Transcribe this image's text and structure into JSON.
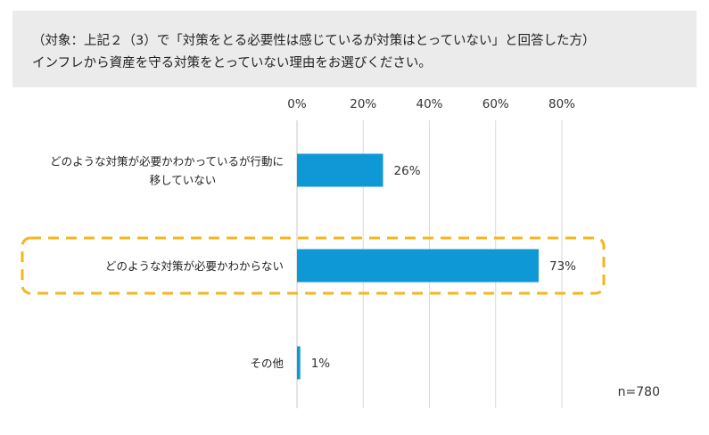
{
  "header": {
    "line1": "（対象：上記２（3）で「対策をとる必要性は感じているが対策はとっていない」と回答した方）",
    "line2": "インフレから資産を守る対策をとっていない理由をお選びください。"
  },
  "chart_data": {
    "type": "bar",
    "orientation": "horizontal",
    "categories": [
      "どのような対策が必要かわかっているが行動に移していない",
      "どのような対策が必要かわからない",
      "その他"
    ],
    "category_lines": [
      [
        "どのような対策が必要かわかっているが行動に",
        "移していない"
      ],
      [
        "どのような対策が必要かわからない"
      ],
      [
        "その他"
      ]
    ],
    "values": [
      26,
      73,
      1
    ],
    "value_labels": [
      "26%",
      "73%",
      "1%"
    ],
    "xlim": [
      0,
      80
    ],
    "xticks": [
      0,
      20,
      40,
      60,
      80
    ],
    "xtick_labels": [
      "0%",
      "20%",
      "40%",
      "60%",
      "80%"
    ],
    "grid": true,
    "highlighted_category": "どのような対策が必要かわからない",
    "sample_size": "n=780",
    "colors": {
      "bar": "#0f98d6",
      "grid": "#d9d9d9",
      "highlight_border": "#f4b61b",
      "header_bg": "#ebebeb"
    }
  }
}
